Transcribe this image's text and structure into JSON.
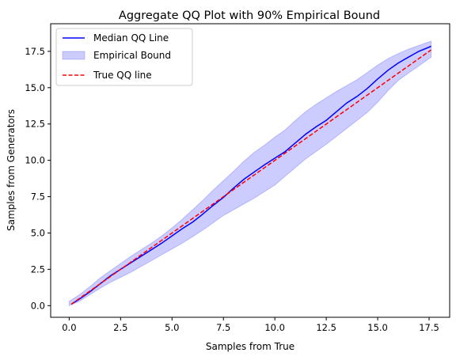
{
  "chart_data": {
    "type": "line",
    "title": "Aggregate QQ Plot with 90% Empirical Bound",
    "xlabel": "Samples from True",
    "ylabel": "Samples from Generators",
    "xlim": [
      -0.9,
      18.5
    ],
    "ylim": [
      -0.8,
      19.4
    ],
    "xticks": [
      0.0,
      2.5,
      5.0,
      7.5,
      10.0,
      12.5,
      15.0,
      17.5
    ],
    "xtick_labels": [
      "0.0",
      "2.5",
      "5.0",
      "7.5",
      "10.0",
      "12.5",
      "15.0",
      "17.5"
    ],
    "yticks": [
      0.0,
      2.5,
      5.0,
      7.5,
      10.0,
      12.5,
      15.0,
      17.5
    ],
    "ytick_labels": [
      "0.0",
      "2.5",
      "5.0",
      "7.5",
      "10.0",
      "12.5",
      "15.0",
      "17.5"
    ],
    "legend_position": "top-left",
    "series": [
      {
        "name": "Median QQ Line",
        "kind": "line",
        "color": "#0000ff",
        "x": [
          0.1,
          0.5,
          1.0,
          1.5,
          2.0,
          2.5,
          3.0,
          3.5,
          4.0,
          4.5,
          5.0,
          5.5,
          6.0,
          6.5,
          7.0,
          7.5,
          8.0,
          8.5,
          9.0,
          9.5,
          10.0,
          10.5,
          11.0,
          11.5,
          12.0,
          12.5,
          13.0,
          13.5,
          14.0,
          14.5,
          15.0,
          15.5,
          16.0,
          16.5,
          17.0,
          17.6
        ],
        "y": [
          0.1,
          0.45,
          0.95,
          1.5,
          2.05,
          2.5,
          2.95,
          3.4,
          3.85,
          4.3,
          4.8,
          5.3,
          5.75,
          6.3,
          6.9,
          7.45,
          8.1,
          8.7,
          9.2,
          9.7,
          10.15,
          10.6,
          11.2,
          11.8,
          12.3,
          12.75,
          13.35,
          13.95,
          14.4,
          14.95,
          15.6,
          16.2,
          16.7,
          17.1,
          17.5,
          17.85
        ]
      },
      {
        "name": "Empirical Bound",
        "kind": "band",
        "color": "#0000ff",
        "opacity": 0.2,
        "x": [
          0.0,
          0.5,
          1.0,
          1.5,
          2.0,
          2.5,
          3.0,
          3.5,
          4.0,
          4.5,
          5.0,
          5.5,
          6.0,
          6.5,
          7.0,
          7.5,
          8.0,
          8.5,
          9.0,
          9.5,
          10.0,
          10.5,
          11.0,
          11.5,
          12.0,
          12.5,
          13.0,
          13.5,
          14.0,
          14.5,
          15.0,
          15.5,
          16.0,
          16.5,
          17.0,
          17.6
        ],
        "lower": [
          0.0,
          0.3,
          0.75,
          1.2,
          1.6,
          1.95,
          2.3,
          2.7,
          3.1,
          3.5,
          3.9,
          4.3,
          4.75,
          5.2,
          5.7,
          6.2,
          6.6,
          7.0,
          7.4,
          7.85,
          8.3,
          8.9,
          9.5,
          10.1,
          10.6,
          11.1,
          11.65,
          12.2,
          12.75,
          13.3,
          14.0,
          14.8,
          15.5,
          16.0,
          16.5,
          17.1
        ],
        "upper": [
          0.3,
          0.75,
          1.3,
          1.9,
          2.4,
          2.9,
          3.4,
          3.85,
          4.3,
          4.8,
          5.35,
          5.95,
          6.6,
          7.25,
          7.95,
          8.6,
          9.25,
          9.95,
          10.55,
          11.05,
          11.6,
          12.1,
          12.75,
          13.35,
          13.85,
          14.3,
          14.75,
          15.15,
          15.55,
          16.05,
          16.55,
          17.0,
          17.35,
          17.65,
          17.9,
          18.2
        ]
      },
      {
        "name": "True QQ line",
        "kind": "line",
        "color": "#ff0000",
        "dashed": true,
        "x": [
          0.1,
          17.6
        ],
        "y": [
          0.1,
          17.6
        ]
      }
    ]
  }
}
